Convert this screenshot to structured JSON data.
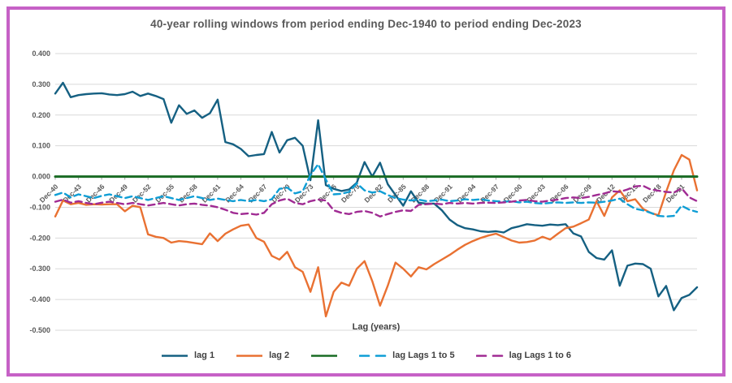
{
  "window": {
    "background_color": "#ffffff",
    "border_color": "#c661c6"
  },
  "chart_data": {
    "type": "line",
    "title": "40-year rolling windows from period ending Dec-1940 to period ending Dec-2023",
    "xlabel": "Lag (years)",
    "ylabel": "",
    "ylim": [
      -0.5,
      0.4
    ],
    "grid": "horizontal",
    "gridline_color": "#d9d9d9",
    "legend_position": "bottom",
    "y_ticks": [
      "0.400",
      "0.300",
      "0.200",
      "0.100",
      "0.000",
      "-0.100",
      "-0.200",
      "-0.300",
      "-0.400",
      "-0.500"
    ],
    "x_start_year": 1940,
    "x_end_year": 2023,
    "x_tick_every": 3,
    "x_tick_labels": [
      "Dec-40",
      "Dec-43",
      "Dec-46",
      "Dec-49",
      "Dec-52",
      "Dec-55",
      "Dec-58",
      "Dec-61",
      "Dec-64",
      "Dec-67",
      "Dec-70",
      "Dec-73",
      "Dec-76",
      "Dec-79",
      "Dec-82",
      "Dec-85",
      "Dec-88",
      "Dec-91",
      "Dec-94",
      "Dec-97",
      "Dec-00",
      "Dec-03",
      "Dec-06",
      "Dec-09",
      "Dec-12",
      "Dec-15",
      "Dec-18",
      "Dec-21"
    ],
    "series": [
      {
        "name": "lag 1",
        "color": "#156082",
        "dash": "solid",
        "values": [
          0.27,
          0.305,
          0.258,
          0.265,
          0.268,
          0.27,
          0.271,
          0.267,
          0.265,
          0.268,
          0.276,
          0.262,
          0.27,
          0.262,
          0.252,
          0.175,
          0.232,
          0.204,
          0.215,
          0.191,
          0.206,
          0.25,
          0.112,
          0.105,
          0.09,
          0.066,
          0.07,
          0.073,
          0.145,
          0.078,
          0.118,
          0.126,
          0.1,
          -0.012,
          0.183,
          -0.028,
          -0.04,
          -0.047,
          -0.042,
          -0.02,
          0.047,
          0.0,
          0.045,
          -0.025,
          -0.06,
          -0.095,
          -0.048,
          -0.085,
          -0.088,
          -0.088,
          -0.11,
          -0.14,
          -0.158,
          -0.168,
          -0.172,
          -0.178,
          -0.18,
          -0.178,
          -0.182,
          -0.168,
          -0.162,
          -0.155,
          -0.158,
          -0.16,
          -0.156,
          -0.158,
          -0.155,
          -0.185,
          -0.195,
          -0.245,
          -0.265,
          -0.27,
          -0.24,
          -0.355,
          -0.29,
          -0.283,
          -0.285,
          -0.3,
          -0.39,
          -0.356,
          -0.435,
          -0.395,
          -0.385,
          -0.36
        ]
      },
      {
        "name": "lag 2",
        "color": "#E97132",
        "dash": "solid",
        "values": [
          -0.13,
          -0.078,
          -0.09,
          -0.086,
          -0.092,
          -0.09,
          -0.091,
          -0.09,
          -0.09,
          -0.113,
          -0.095,
          -0.1,
          -0.188,
          -0.196,
          -0.2,
          -0.215,
          -0.21,
          -0.212,
          -0.216,
          -0.22,
          -0.185,
          -0.21,
          -0.186,
          -0.172,
          -0.16,
          -0.156,
          -0.2,
          -0.212,
          -0.258,
          -0.27,
          -0.245,
          -0.295,
          -0.31,
          -0.375,
          -0.295,
          -0.455,
          -0.375,
          -0.345,
          -0.355,
          -0.3,
          -0.275,
          -0.34,
          -0.42,
          -0.355,
          -0.28,
          -0.3,
          -0.325,
          -0.295,
          -0.302,
          -0.285,
          -0.27,
          -0.255,
          -0.238,
          -0.222,
          -0.21,
          -0.2,
          -0.192,
          -0.186,
          -0.197,
          -0.208,
          -0.215,
          -0.213,
          -0.208,
          -0.196,
          -0.205,
          -0.186,
          -0.168,
          -0.163,
          -0.152,
          -0.14,
          -0.08,
          -0.128,
          -0.068,
          -0.045,
          -0.08,
          -0.074,
          -0.105,
          -0.118,
          -0.126,
          -0.05,
          0.02,
          0.07,
          0.055,
          -0.045
        ]
      },
      {
        "name": "",
        "color": "#196B24",
        "dash": "solid",
        "constant": 0.0,
        "values": []
      },
      {
        "name": "lag Lags 1 to 5",
        "color": "#0F9ED5",
        "dash": "dashed",
        "values": [
          -0.06,
          -0.052,
          -0.068,
          -0.058,
          -0.064,
          -0.07,
          -0.063,
          -0.058,
          -0.064,
          -0.07,
          -0.064,
          -0.07,
          -0.076,
          -0.07,
          -0.064,
          -0.07,
          -0.076,
          -0.07,
          -0.064,
          -0.07,
          -0.076,
          -0.072,
          -0.076,
          -0.08,
          -0.076,
          -0.08,
          -0.076,
          -0.08,
          -0.074,
          -0.04,
          -0.036,
          -0.055,
          -0.048,
          0.005,
          0.04,
          -0.01,
          -0.058,
          -0.056,
          -0.05,
          -0.022,
          -0.045,
          -0.052,
          -0.048,
          -0.06,
          -0.07,
          -0.075,
          -0.078,
          -0.075,
          -0.08,
          -0.078,
          -0.075,
          -0.08,
          -0.078,
          -0.074,
          -0.076,
          -0.074,
          -0.078,
          -0.08,
          -0.082,
          -0.08,
          -0.084,
          -0.082,
          -0.086,
          -0.088,
          -0.086,
          -0.084,
          -0.086,
          -0.084,
          -0.086,
          -0.084,
          -0.085,
          -0.082,
          -0.078,
          -0.072,
          -0.09,
          -0.105,
          -0.11,
          -0.118,
          -0.128,
          -0.13,
          -0.128,
          -0.095,
          -0.108,
          -0.115
        ]
      },
      {
        "name": "lag Lags 1 to 6",
        "color": "#A02B93",
        "dash": "dashed",
        "values": [
          -0.082,
          -0.075,
          -0.085,
          -0.08,
          -0.086,
          -0.09,
          -0.085,
          -0.082,
          -0.086,
          -0.09,
          -0.086,
          -0.09,
          -0.094,
          -0.09,
          -0.086,
          -0.09,
          -0.094,
          -0.09,
          -0.088,
          -0.092,
          -0.095,
          -0.1,
          -0.108,
          -0.118,
          -0.122,
          -0.12,
          -0.124,
          -0.118,
          -0.09,
          -0.078,
          -0.072,
          -0.086,
          -0.09,
          -0.08,
          -0.075,
          -0.078,
          -0.11,
          -0.118,
          -0.122,
          -0.115,
          -0.112,
          -0.118,
          -0.13,
          -0.122,
          -0.115,
          -0.11,
          -0.112,
          -0.092,
          -0.09,
          -0.088,
          -0.09,
          -0.086,
          -0.088,
          -0.086,
          -0.088,
          -0.086,
          -0.085,
          -0.086,
          -0.084,
          -0.082,
          -0.078,
          -0.076,
          -0.08,
          -0.082,
          -0.078,
          -0.075,
          -0.07,
          -0.068,
          -0.07,
          -0.066,
          -0.06,
          -0.055,
          -0.048,
          -0.05,
          -0.042,
          -0.032,
          -0.03,
          -0.042,
          -0.046,
          -0.05,
          -0.052,
          -0.038,
          -0.068,
          -0.08
        ]
      }
    ]
  }
}
